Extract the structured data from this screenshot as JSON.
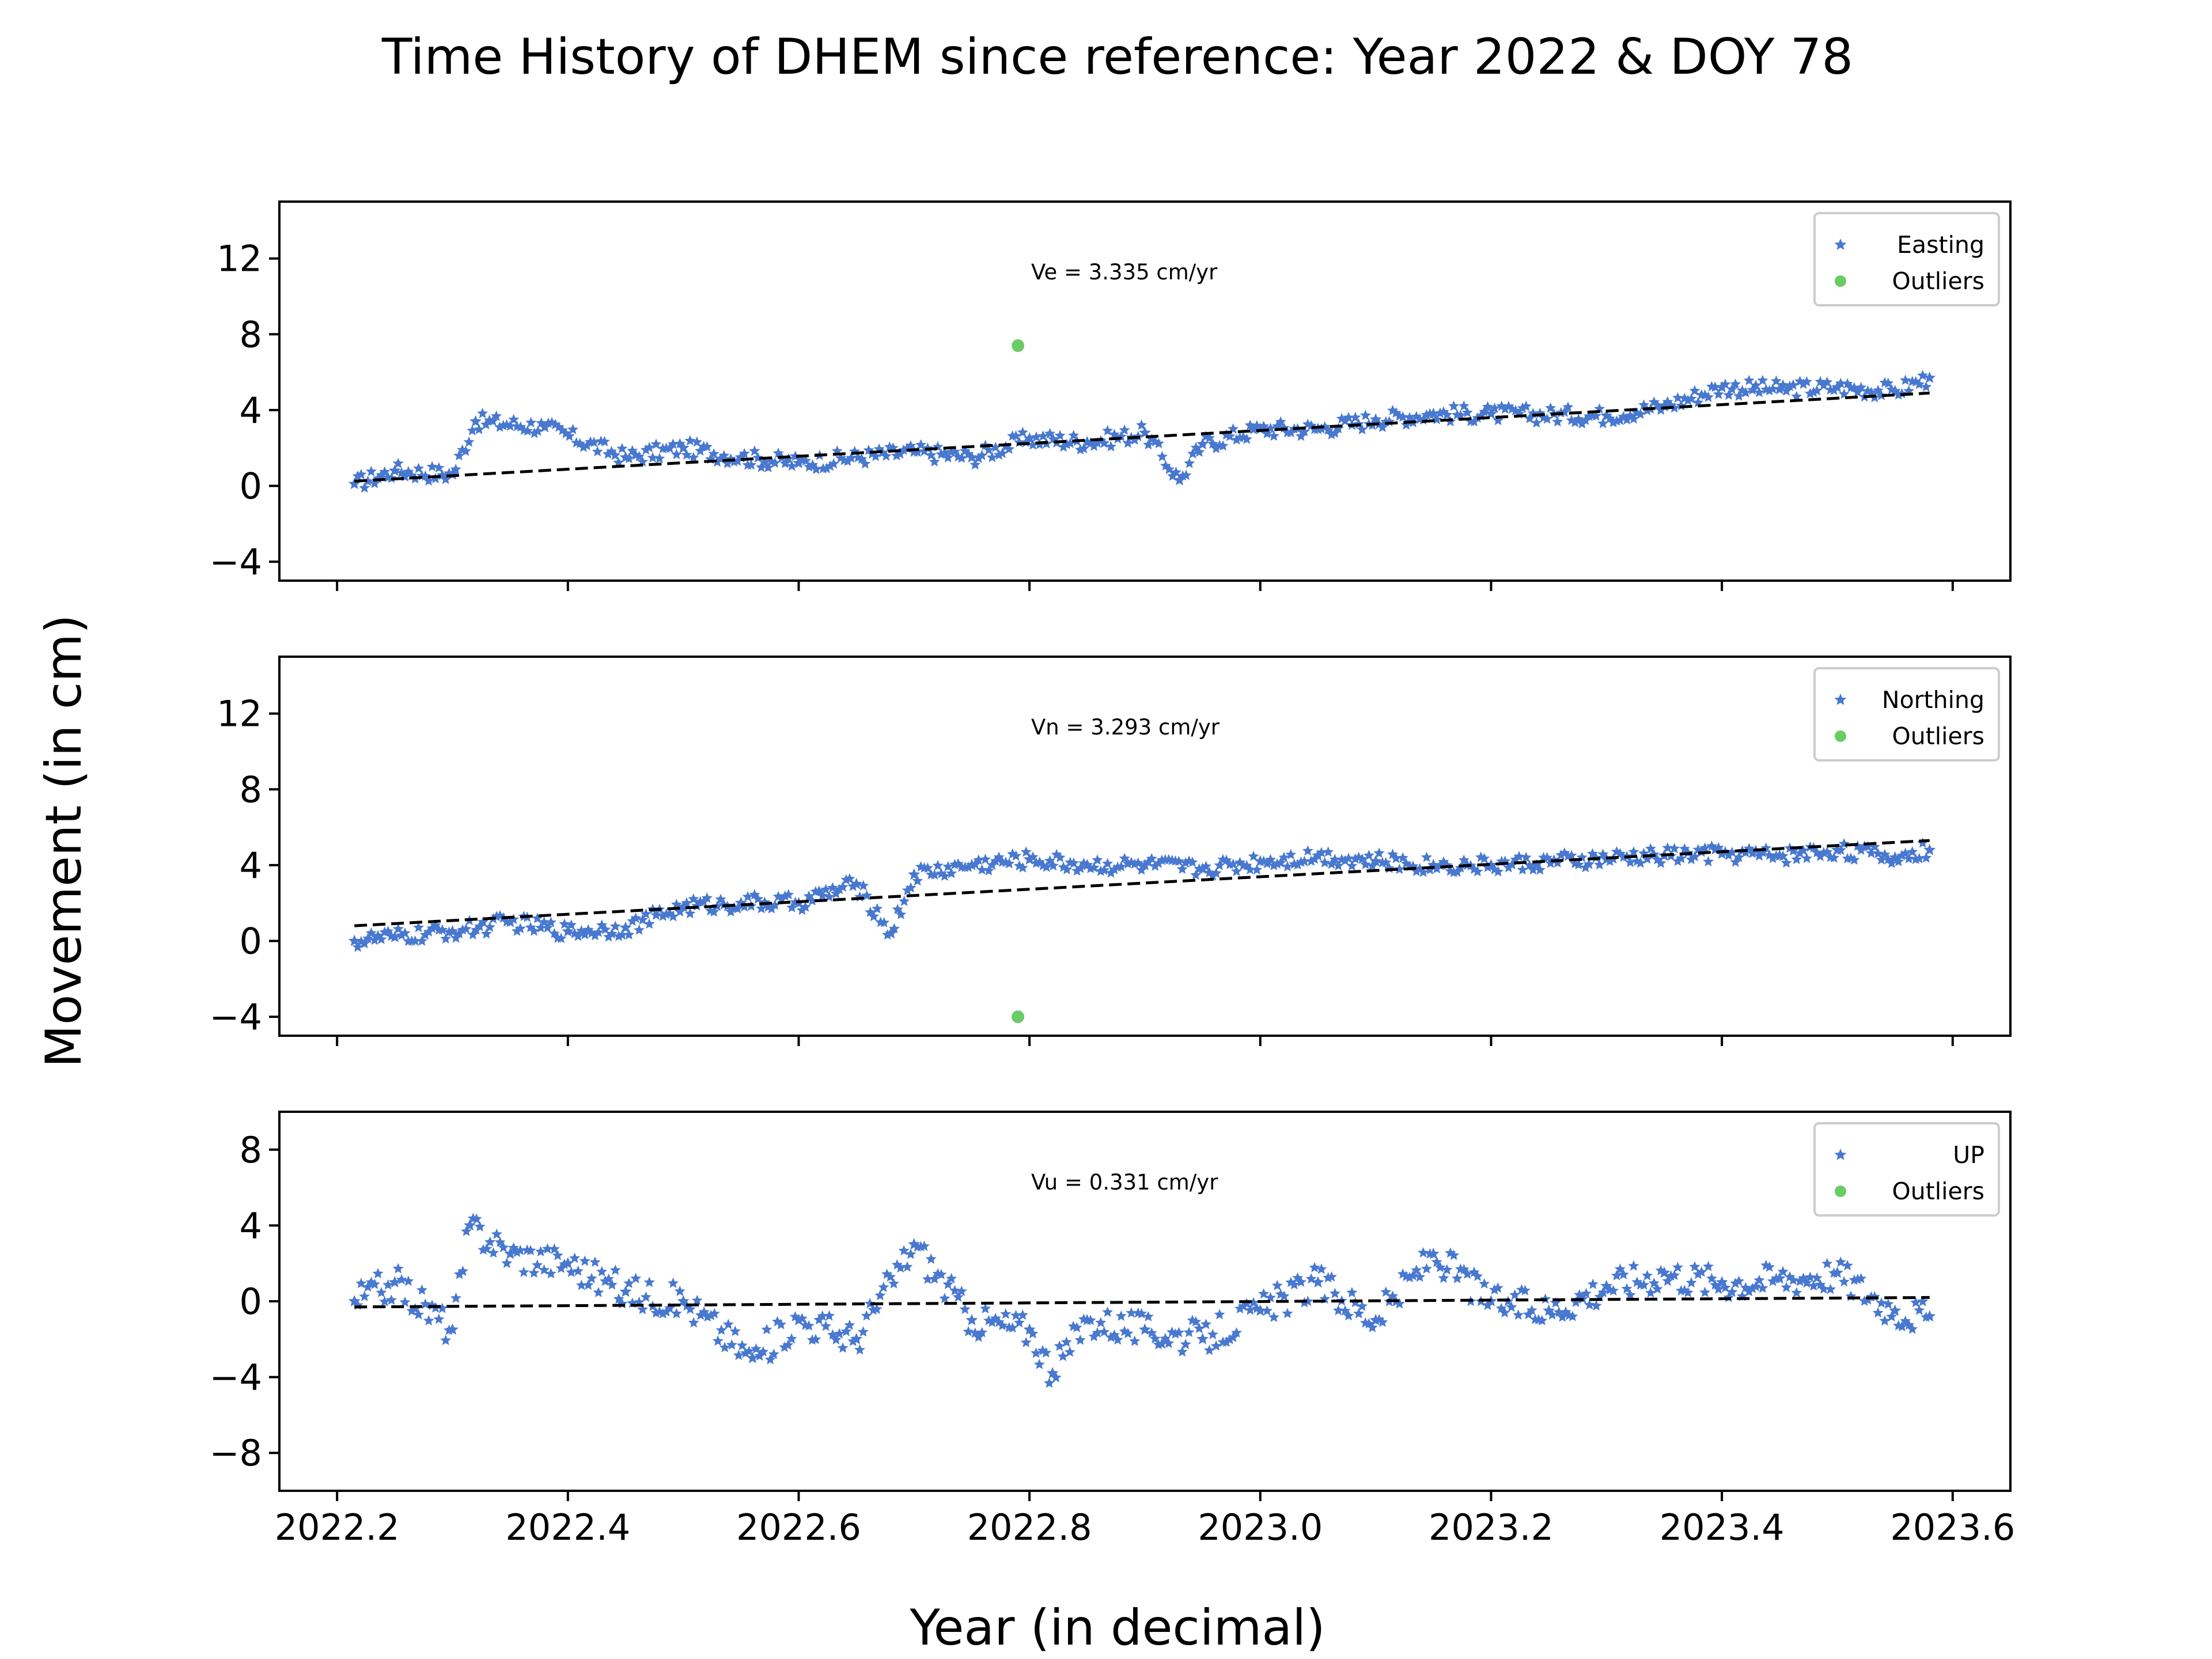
{
  "title": "Time History of DHEM since reference: Year 2022 & DOY 78",
  "xlabel": "Year (in decimal)",
  "ylabel": "Movement (in cm)",
  "colors": {
    "series": "#4878cf",
    "outliers": "#6acc65",
    "trend": "#000000"
  },
  "chart_data": [
    {
      "type": "scatter",
      "component": "Easting",
      "annotation": "Ve =  3.335 cm/yr",
      "legend": [
        "Easting",
        "Outliers"
      ],
      "legend_position": "top-right",
      "xlim": [
        2022.15,
        2023.65
      ],
      "ylim": [
        -5,
        15
      ],
      "yticks": [
        -4,
        0,
        4,
        8,
        12
      ],
      "xticks": [
        2022.2,
        2022.4,
        2022.6,
        2022.8,
        2023.0,
        2023.2,
        2023.4,
        2023.6
      ],
      "show_xtick_labels": false,
      "trend": {
        "x": [
          2022.215,
          2023.58
        ],
        "y": [
          0.25,
          4.9
        ]
      },
      "sample_points": {
        "x": [
          2022.215,
          2022.25,
          2022.3,
          2022.32,
          2022.38,
          2022.45,
          2022.5,
          2022.55,
          2022.6,
          2022.7,
          2022.75,
          2022.8,
          2022.85,
          2022.9,
          2022.93,
          2022.95,
          2023.0,
          2023.05,
          2023.1,
          2023.15,
          2023.2,
          2023.3,
          2023.35,
          2023.4,
          2023.45,
          2023.5,
          2023.55,
          2023.58
        ],
        "y": [
          0.1,
          0.8,
          0.6,
          3.4,
          3.1,
          1.5,
          2.0,
          1.5,
          1.2,
          1.8,
          1.5,
          2.5,
          2.3,
          2.8,
          0.3,
          2.2,
          3.0,
          3.0,
          3.5,
          3.8,
          3.8,
          3.7,
          4.2,
          5.2,
          5.1,
          5.2,
          5.0,
          5.7
        ]
      },
      "outliers": {
        "x": [
          2022.79
        ],
        "y": [
          7.4
        ]
      }
    },
    {
      "type": "scatter",
      "component": "Northing",
      "annotation": "Vn =  3.293 cm/yr",
      "legend": [
        "Northing",
        "Outliers"
      ],
      "legend_position": "top-right",
      "xlim": [
        2022.15,
        2023.65
      ],
      "ylim": [
        -5,
        15
      ],
      "yticks": [
        -4,
        0,
        4,
        8,
        12
      ],
      "xticks": [
        2022.2,
        2022.4,
        2022.6,
        2022.8,
        2023.0,
        2023.2,
        2023.4,
        2023.6
      ],
      "show_xtick_labels": false,
      "trend": {
        "x": [
          2022.215,
          2023.58
        ],
        "y": [
          0.8,
          5.3
        ]
      },
      "sample_points": {
        "x": [
          2022.215,
          2022.25,
          2022.3,
          2022.35,
          2022.4,
          2022.45,
          2022.5,
          2022.55,
          2022.6,
          2022.65,
          2022.68,
          2022.7,
          2022.75,
          2022.8,
          2022.85,
          2022.9,
          2022.95,
          2023.0,
          2023.05,
          2023.1,
          2023.15,
          2023.2,
          2023.3,
          2023.35,
          2023.4,
          2023.45,
          2023.5,
          2023.55,
          2023.58
        ],
        "y": [
          0.0,
          0.2,
          0.5,
          1.0,
          0.5,
          0.7,
          1.8,
          2.0,
          2.0,
          3.0,
          0.4,
          3.5,
          4.0,
          4.3,
          4.0,
          4.0,
          3.8,
          4.2,
          4.5,
          4.2,
          4.0,
          4.0,
          4.3,
          4.5,
          4.6,
          4.5,
          4.8,
          4.4,
          4.8
        ]
      },
      "outliers": {
        "x": [
          2022.79
        ],
        "y": [
          -4.0
        ]
      }
    },
    {
      "type": "scatter",
      "component": "UP",
      "annotation": "Vu =  0.331 cm/yr",
      "legend": [
        "UP",
        "Outliers"
      ],
      "legend_position": "top-right",
      "xlim": [
        2022.15,
        2023.65
      ],
      "ylim": [
        -10,
        10
      ],
      "yticks": [
        -8,
        -4,
        0,
        4,
        8
      ],
      "xticks": [
        2022.2,
        2022.4,
        2022.6,
        2022.8,
        2023.0,
        2023.2,
        2023.4,
        2023.6
      ],
      "xtick_labels": [
        "2022.2",
        "2022.4",
        "2022.6",
        "2022.8",
        "2023.0",
        "2023.2",
        "2023.4",
        "2023.6"
      ],
      "show_xtick_labels": true,
      "trend": {
        "x": [
          2022.215,
          2023.58
        ],
        "y": [
          -0.3,
          0.2
        ]
      },
      "sample_points": {
        "x": [
          2022.215,
          2022.25,
          2022.3,
          2022.315,
          2022.35,
          2022.4,
          2022.45,
          2022.5,
          2022.56,
          2022.6,
          2022.65,
          2022.7,
          2022.75,
          2022.8,
          2022.82,
          2022.85,
          2022.9,
          2022.95,
          2023.0,
          2023.05,
          2023.1,
          2023.15,
          2023.2,
          2023.25,
          2023.3,
          2023.35,
          2023.4,
          2023.45,
          2023.5,
          2023.55,
          2023.58
        ],
        "y": [
          0.0,
          1.0,
          -1.5,
          4.0,
          2.5,
          2.0,
          0.5,
          0.0,
          -3.0,
          -1.0,
          -2.0,
          3.0,
          -1.0,
          -1.5,
          -3.8,
          -1.0,
          -1.5,
          -2.0,
          -0.5,
          1.0,
          -1.0,
          2.5,
          0.0,
          -0.5,
          0.8,
          1.5,
          1.0,
          1.2,
          1.5,
          -0.5,
          -0.8
        ]
      },
      "outliers": {
        "x": [],
        "y": []
      }
    }
  ]
}
